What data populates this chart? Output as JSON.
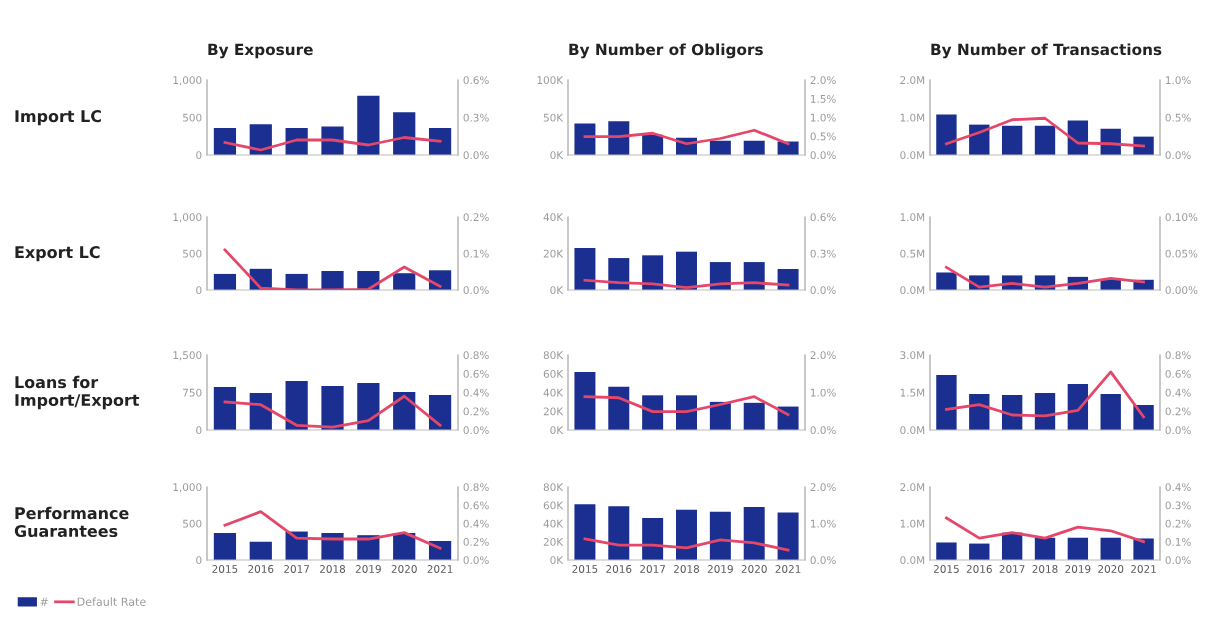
{
  "chart_data": [
    {
      "type": "bar",
      "title": "By Exposure",
      "ylabel": "Import LC",
      "categories": [
        null,
        null,
        null,
        null,
        null,
        null,
        null
      ],
      "ylim": [
        0,
        1000
      ],
      "yticks": [
        0,
        500,
        {
          "value": 1000,
          "label": "1,000"
        }
      ],
      "y2lim": [
        0,
        0.6
      ],
      "y2ticks": [
        {
          "value": 0,
          "label": "0.0%"
        },
        {
          "value": 0.3,
          "label": "0.3%"
        },
        {
          "value": 0.6,
          "label": "0.6%"
        }
      ],
      "series": [
        {
          "type": "bar",
          "color": "#1a2f8f",
          "values": [
            360,
            410,
            360,
            380,
            790,
            570,
            360
          ]
        },
        {
          "type": "line",
          "axis": "y2",
          "color": "#e5476b",
          "values": [
            0.1,
            0.04,
            0.12,
            0.12,
            0.08,
            0.14,
            0.11
          ]
        }
      ]
    },
    {
      "type": "bar",
      "title": "By Number of Obligors",
      "categories": [
        null,
        null,
        null,
        null,
        null,
        null,
        null
      ],
      "ylim": [
        0,
        100000
      ],
      "yticks": [
        {
          "value": 0,
          "label": "0K"
        },
        {
          "value": 50000,
          "label": "50K"
        },
        {
          "value": 100000,
          "label": "100K"
        }
      ],
      "y2lim": [
        0,
        2.0
      ],
      "y2ticks": [
        {
          "value": 0,
          "label": "0.0%"
        },
        {
          "value": 0.5,
          "label": "0.5%"
        },
        {
          "value": 1.0,
          "label": "1.0%"
        },
        {
          "value": 1.5,
          "label": "1.5%"
        },
        {
          "value": 2.0,
          "label": "2.0%"
        }
      ],
      "series": [
        {
          "type": "bar",
          "color": "#1a2f8f",
          "values": [
            42000,
            45000,
            27000,
            23000,
            19000,
            19000,
            18000
          ]
        },
        {
          "type": "line",
          "axis": "y2",
          "color": "#e5476b",
          "values": [
            0.49,
            0.49,
            0.58,
            0.3,
            0.44,
            0.66,
            0.3
          ]
        }
      ]
    },
    {
      "type": "bar",
      "title": "By Number of Transactions",
      "categories": [
        null,
        null,
        null,
        null,
        null,
        null,
        null
      ],
      "ylim": [
        0,
        2000000
      ],
      "yticks": [
        {
          "value": 0,
          "label": "0.0M"
        },
        {
          "value": 1000000,
          "label": "1.0M"
        },
        {
          "value": 2000000,
          "label": "2.0M"
        }
      ],
      "y2lim": [
        0,
        1.0
      ],
      "y2ticks": [
        {
          "value": 0,
          "label": "0.0%"
        },
        {
          "value": 0.5,
          "label": "0.5%"
        },
        {
          "value": 1.0,
          "label": "1.0%"
        }
      ],
      "series": [
        {
          "type": "bar",
          "color": "#1a2f8f",
          "values": [
            1080000,
            810000,
            780000,
            780000,
            920000,
            700000,
            490000
          ]
        },
        {
          "type": "line",
          "axis": "y2",
          "color": "#e5476b",
          "values": [
            0.15,
            0.3,
            0.47,
            0.49,
            0.16,
            0.15,
            0.12
          ]
        }
      ]
    },
    {
      "type": "bar",
      "ylabel": "Export LC",
      "categories": [
        null,
        null,
        null,
        null,
        null,
        null,
        null
      ],
      "ylim": [
        0,
        1000
      ],
      "yticks": [
        0,
        500,
        {
          "value": 1000,
          "label": "1,000"
        }
      ],
      "y2lim": [
        0,
        0.2
      ],
      "y2ticks": [
        {
          "value": 0,
          "label": "0.0%"
        },
        {
          "value": 0.1,
          "label": "0.1%"
        },
        {
          "value": 0.2,
          "label": "0.2%"
        }
      ],
      "series": [
        {
          "type": "bar",
          "color": "#1a2f8f",
          "values": [
            220,
            290,
            220,
            260,
            260,
            230,
            270
          ]
        },
        {
          "type": "line",
          "axis": "y2",
          "color": "#e5476b",
          "values": [
            0.11,
            0.005,
            0.0,
            0.0,
            0.002,
            0.063,
            0.01
          ]
        }
      ]
    },
    {
      "type": "bar",
      "categories": [
        null,
        null,
        null,
        null,
        null,
        null,
        null
      ],
      "ylim": [
        0,
        40000
      ],
      "yticks": [
        {
          "value": 0,
          "label": "0K"
        },
        {
          "value": 20000,
          "label": "20K"
        },
        {
          "value": 40000,
          "label": "40K"
        }
      ],
      "y2lim": [
        0,
        0.6
      ],
      "y2ticks": [
        {
          "value": 0,
          "label": "0.0%"
        },
        {
          "value": 0.3,
          "label": "0.3%"
        },
        {
          "value": 0.6,
          "label": "0.6%"
        }
      ],
      "series": [
        {
          "type": "bar",
          "color": "#1a2f8f",
          "values": [
            23000,
            17500,
            19000,
            21000,
            15300,
            15300,
            11500
          ]
        },
        {
          "type": "line",
          "axis": "y2",
          "color": "#e5476b",
          "values": [
            0.08,
            0.06,
            0.05,
            0.02,
            0.05,
            0.06,
            0.04
          ]
        }
      ]
    },
    {
      "type": "bar",
      "categories": [
        null,
        null,
        null,
        null,
        null,
        null,
        null
      ],
      "ylim": [
        0,
        1000000
      ],
      "yticks": [
        {
          "value": 0,
          "label": "0.0M"
        },
        {
          "value": 500000,
          "label": "0.5M"
        },
        {
          "value": 1000000,
          "label": "1.0M"
        }
      ],
      "y2lim": [
        0,
        0.1
      ],
      "y2ticks": [
        {
          "value": 0,
          "label": "0.00%"
        },
        {
          "value": 0.05,
          "label": "0.05%"
        },
        {
          "value": 0.1,
          "label": "0.10%"
        }
      ],
      "series": [
        {
          "type": "bar",
          "color": "#1a2f8f",
          "values": [
            240000,
            200000,
            200000,
            200000,
            180000,
            140000,
            140000
          ]
        },
        {
          "type": "line",
          "axis": "y2",
          "color": "#e5476b",
          "values": [
            0.031,
            0.004,
            0.009,
            0.004,
            0.009,
            0.016,
            0.011
          ]
        }
      ]
    },
    {
      "type": "bar",
      "ylabel": "Loans for\nImport/Export",
      "categories": [
        null,
        null,
        null,
        null,
        null,
        null,
        null
      ],
      "ylim": [
        0,
        1500
      ],
      "yticks": [
        0,
        750,
        {
          "value": 1500,
          "label": "1,500"
        }
      ],
      "y2lim": [
        0,
        0.8
      ],
      "y2ticks": [
        {
          "value": 0,
          "label": "0.0%"
        },
        {
          "value": 0.2,
          "label": "0.2%"
        },
        {
          "value": 0.4,
          "label": "0.4%"
        },
        {
          "value": 0.6,
          "label": "0.6%"
        },
        {
          "value": 0.8,
          "label": "0.8%"
        }
      ],
      "series": [
        {
          "type": "bar",
          "color": "#1a2f8f",
          "values": [
            860,
            740,
            980,
            880,
            940,
            760,
            700
          ]
        },
        {
          "type": "line",
          "axis": "y2",
          "color": "#e5476b",
          "values": [
            0.3,
            0.27,
            0.05,
            0.03,
            0.1,
            0.36,
            0.05
          ]
        }
      ]
    },
    {
      "type": "bar",
      "categories": [
        null,
        null,
        null,
        null,
        null,
        null,
        null
      ],
      "ylim": [
        0,
        80000
      ],
      "yticks": [
        {
          "value": 0,
          "label": "0K"
        },
        {
          "value": 20000,
          "label": "20K"
        },
        {
          "value": 40000,
          "label": "40K"
        },
        {
          "value": 60000,
          "label": "60K"
        },
        {
          "value": 80000,
          "label": "80K"
        }
      ],
      "y2lim": [
        0,
        2.0
      ],
      "y2ticks": [
        {
          "value": 0,
          "label": "0.0%"
        },
        {
          "value": 1.0,
          "label": "1.0%"
        },
        {
          "value": 2.0,
          "label": "2.0%"
        }
      ],
      "series": [
        {
          "type": "bar",
          "color": "#1a2f8f",
          "values": [
            62000,
            46000,
            37000,
            37000,
            30000,
            29000,
            25000
          ]
        },
        {
          "type": "line",
          "axis": "y2",
          "color": "#e5476b",
          "values": [
            0.89,
            0.86,
            0.49,
            0.49,
            0.68,
            0.89,
            0.41
          ]
        }
      ]
    },
    {
      "type": "bar",
      "categories": [
        null,
        null,
        null,
        null,
        null,
        null,
        null
      ],
      "ylim": [
        0,
        3000000
      ],
      "yticks": [
        {
          "value": 0,
          "label": "0.0M"
        },
        {
          "value": 1500000,
          "label": "1.5M"
        },
        {
          "value": 3000000,
          "label": "3.0M"
        }
      ],
      "y2lim": [
        0,
        0.8
      ],
      "y2ticks": [
        {
          "value": 0,
          "label": "0.0%"
        },
        {
          "value": 0.2,
          "label": "0.2%"
        },
        {
          "value": 0.4,
          "label": "0.4%"
        },
        {
          "value": 0.6,
          "label": "0.6%"
        },
        {
          "value": 0.8,
          "label": "0.8%"
        }
      ],
      "series": [
        {
          "type": "bar",
          "color": "#1a2f8f",
          "values": [
            2200000,
            1440000,
            1400000,
            1480000,
            1840000,
            1440000,
            1000000
          ]
        },
        {
          "type": "line",
          "axis": "y2",
          "color": "#e5476b",
          "values": [
            0.22,
            0.27,
            0.16,
            0.15,
            0.21,
            0.62,
            0.14
          ]
        }
      ]
    },
    {
      "type": "bar",
      "ylabel": "Performance\nGuarantees",
      "legend": "bottom",
      "categories": [
        "2015",
        "2016",
        "2017",
        "2018",
        "2019",
        "2020",
        "2021"
      ],
      "ylim": [
        0,
        1000
      ],
      "yticks": [
        0,
        500,
        {
          "value": 1000,
          "label": "1,000"
        }
      ],
      "y2lim": [
        0,
        0.8
      ],
      "y2ticks": [
        {
          "value": 0,
          "label": "0.0%"
        },
        {
          "value": 0.2,
          "label": "0.2%"
        },
        {
          "value": 0.4,
          "label": "0.4%"
        },
        {
          "value": 0.6,
          "label": "0.6%"
        },
        {
          "value": 0.8,
          "label": "0.8%"
        }
      ],
      "series": [
        {
          "type": "bar",
          "name": "#",
          "color": "#1a2f8f",
          "values": [
            370,
            250,
            390,
            370,
            340,
            370,
            260
          ]
        },
        {
          "type": "line",
          "axis": "y2",
          "name": "Default Rate",
          "color": "#e5476b",
          "values": [
            0.38,
            0.53,
            0.24,
            0.23,
            0.23,
            0.3,
            0.13
          ]
        }
      ]
    },
    {
      "type": "bar",
      "categories": [
        "2015",
        "2016",
        "2017",
        "2018",
        "2019",
        "2020",
        "2021"
      ],
      "ylim": [
        0,
        80000
      ],
      "yticks": [
        {
          "value": 0,
          "label": "0K"
        },
        {
          "value": 20000,
          "label": "20K"
        },
        {
          "value": 40000,
          "label": "40K"
        },
        {
          "value": 60000,
          "label": "60K"
        },
        {
          "value": 80000,
          "label": "80K"
        }
      ],
      "y2lim": [
        0,
        2.0
      ],
      "y2ticks": [
        {
          "value": 0,
          "label": "0.0%"
        },
        {
          "value": 1.0,
          "label": "1.0%"
        },
        {
          "value": 2.0,
          "label": "2.0%"
        }
      ],
      "series": [
        {
          "type": "bar",
          "color": "#1a2f8f",
          "values": [
            61000,
            59000,
            46000,
            55000,
            53000,
            58000,
            52000
          ]
        },
        {
          "type": "line",
          "axis": "y2",
          "color": "#e5476b",
          "values": [
            0.58,
            0.41,
            0.41,
            0.33,
            0.55,
            0.47,
            0.27
          ]
        }
      ]
    },
    {
      "type": "bar",
      "categories": [
        "2015",
        "2016",
        "2017",
        "2018",
        "2019",
        "2020",
        "2021"
      ],
      "ylim": [
        0,
        2000000
      ],
      "yticks": [
        {
          "value": 0,
          "label": "0.0M"
        },
        {
          "value": 1000000,
          "label": "1.0M"
        },
        {
          "value": 2000000,
          "label": "2.0M"
        }
      ],
      "y2lim": [
        0,
        0.4
      ],
      "y2ticks": [
        {
          "value": 0,
          "label": "0.0%"
        },
        {
          "value": 0.1,
          "label": "0.1%"
        },
        {
          "value": 0.2,
          "label": "0.2%"
        },
        {
          "value": 0.3,
          "label": "0.3%"
        },
        {
          "value": 0.4,
          "label": "0.4%"
        }
      ],
      "series": [
        {
          "type": "bar",
          "color": "#1a2f8f",
          "values": [
            480000,
            450000,
            750000,
            610000,
            610000,
            610000,
            590000
          ]
        },
        {
          "type": "line",
          "axis": "y2",
          "color": "#e5476b",
          "values": [
            0.23,
            0.12,
            0.15,
            0.12,
            0.18,
            0.16,
            0.1
          ]
        }
      ]
    }
  ]
}
